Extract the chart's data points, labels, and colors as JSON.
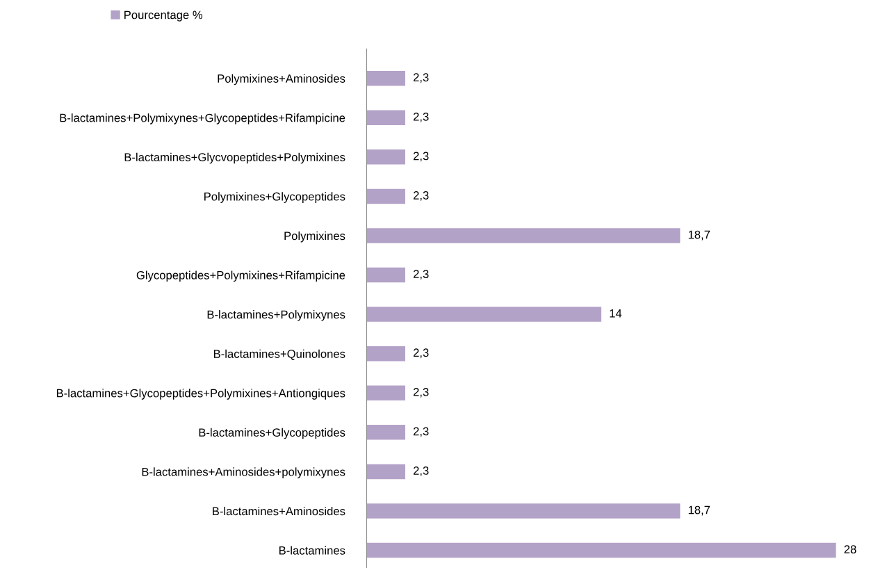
{
  "chart_data": {
    "type": "bar",
    "orientation": "horizontal",
    "legend": "top",
    "grid": false,
    "categories": [
      "Polymixines+Aminosides",
      "B-lactamines+Polymixynes+Glycopeptides+Rifampicine",
      "B-lactamines+Glycvopeptides+Polymixines",
      "Polymixines+Glycopeptides",
      "Polymixines",
      "Glycopeptides+Polymixines+Rifampicine",
      "B-lactamines+Polymixynes",
      "B-lactamines+Quinolones",
      "B-lactamines+Glycopeptides+Polymixines+Antiongiques",
      "B-lactamines+Glycopeptides",
      "B-lactamines+Aminosides+polymixynes",
      "B-lactamines+Aminosides",
      "B-lactamines"
    ],
    "series": [
      {
        "name": "Pourcentage %",
        "color": "#b3a2c7",
        "values": [
          2.3,
          2.3,
          2.3,
          2.3,
          18.7,
          2.3,
          14,
          2.3,
          2.3,
          2.3,
          2.3,
          18.7,
          28
        ],
        "value_labels": [
          "2,3",
          "2,3",
          "2,3",
          "2,3",
          "18,7",
          "2,3",
          "14",
          "2,3",
          "2,3",
          "2,3",
          "2,3",
          "18,7",
          "28"
        ]
      }
    ]
  }
}
